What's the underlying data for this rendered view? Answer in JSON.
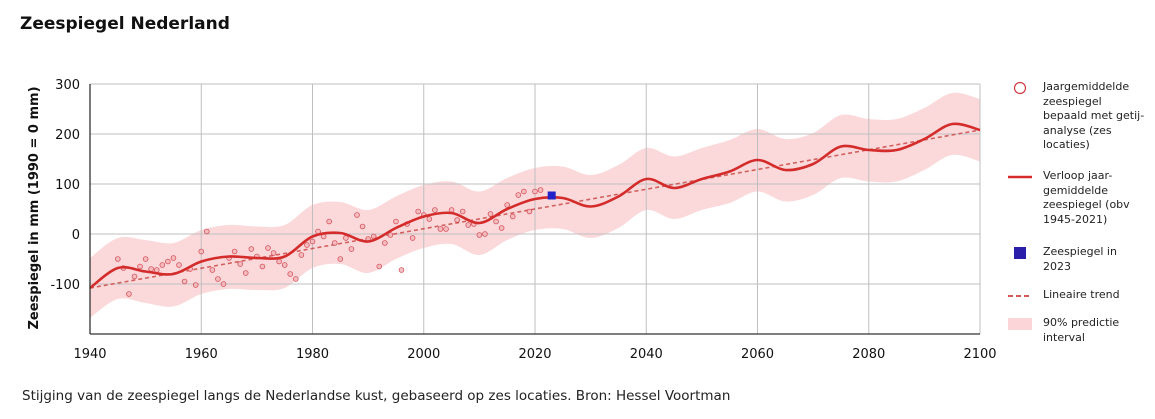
{
  "page": {
    "title": "Zeespiegel Nederland",
    "caption": "Stijging van de zeespiegel langs de Nederlandse kust, gebaseerd op zes locaties. Bron: Hessel Voortman"
  },
  "colors": {
    "observed": "#cf3a44",
    "curve": "#d42b2b",
    "trend": "#c9433f",
    "band": "#fbd5d7",
    "marker2023": "#2222c8",
    "grid": "#bfbfbf",
    "axis": "#333333"
  },
  "chart_data": {
    "type": "line",
    "title": "Zeespiegel Nederland",
    "xlabel": "",
    "ylabel": "Zeespiegel in mm (1990 = 0 mm)",
    "xlim": [
      1940,
      2100
    ],
    "ylim": [
      -200,
      300
    ],
    "xticks": [
      1940,
      1960,
      1980,
      2000,
      2020,
      2040,
      2060,
      2080,
      2100
    ],
    "yticks": [
      -100,
      0,
      100,
      200,
      300
    ],
    "grid": true,
    "legend_position": "right",
    "legend": [
      "Jaargemiddelde zeespiegel bepaald met getij-analyse (zes locaties)",
      "Verloop jaar-gemiddelde zeespiegel (obv 1945-2021)",
      "Zeespiegel in 2023",
      "Lineaire trend",
      "90% predictie interval"
    ],
    "series": [
      {
        "name": "Jaargemiddelde zeespiegel bepaald met getij-analyse (zes locaties)",
        "kind": "scatter",
        "x": [
          1945,
          1946,
          1947,
          1948,
          1949,
          1950,
          1951,
          1952,
          1953,
          1954,
          1955,
          1956,
          1957,
          1958,
          1959,
          1960,
          1961,
          1962,
          1963,
          1964,
          1965,
          1966,
          1967,
          1968,
          1969,
          1970,
          1971,
          1972,
          1973,
          1974,
          1975,
          1976,
          1977,
          1978,
          1979,
          1980,
          1981,
          1982,
          1983,
          1984,
          1985,
          1986,
          1987,
          1988,
          1989,
          1990,
          1991,
          1992,
          1993,
          1994,
          1995,
          1996,
          1997,
          1998,
          1999,
          2000,
          2001,
          2002,
          2003,
          2004,
          2005,
          2006,
          2007,
          2008,
          2009,
          2010,
          2011,
          2012,
          2013,
          2014,
          2015,
          2016,
          2017,
          2018,
          2019,
          2020,
          2021
        ],
        "y": [
          -50,
          -68,
          -120,
          -85,
          -65,
          -50,
          -70,
          -72,
          -62,
          -55,
          -48,
          -62,
          -95,
          -70,
          -102,
          -35,
          5,
          -72,
          -90,
          -100,
          -48,
          -35,
          -60,
          -78,
          -30,
          -45,
          -65,
          -28,
          -38,
          -55,
          -62,
          -80,
          -90,
          -42,
          -22,
          -15,
          5,
          -5,
          25,
          -18,
          -50,
          -8,
          -30,
          38,
          15,
          -10,
          -5,
          -65,
          -18,
          -2,
          25,
          -72,
          20,
          -8,
          45,
          38,
          30,
          48,
          10,
          10,
          48,
          28,
          45,
          18,
          20,
          -2,
          0,
          40,
          25,
          12,
          58,
          35,
          78,
          85,
          45,
          85,
          88
        ]
      },
      {
        "name": "Verloop jaar-gemiddelde zeespiegel (obv 1945-2021)",
        "kind": "line",
        "x": [
          1940,
          1945,
          1950,
          1955,
          1960,
          1965,
          1970,
          1975,
          1980,
          1985,
          1990,
          1995,
          2000,
          2005,
          2010,
          2015,
          2020,
          2025,
          2030,
          2035,
          2040,
          2045,
          2050,
          2055,
          2060,
          2065,
          2070,
          2075,
          2080,
          2085,
          2090,
          2095,
          2100
        ],
        "y": [
          -108,
          -68,
          -75,
          -80,
          -55,
          -45,
          -48,
          -45,
          -5,
          2,
          -15,
          12,
          35,
          42,
          22,
          50,
          70,
          72,
          55,
          75,
          110,
          92,
          110,
          125,
          148,
          128,
          140,
          175,
          168,
          168,
          190,
          220,
          208
        ]
      },
      {
        "name": "Zeespiegel in 2023",
        "kind": "point",
        "x": [
          2023
        ],
        "y": [
          77
        ]
      },
      {
        "name": "Lineaire trend",
        "kind": "line",
        "x": [
          1940,
          2100
        ],
        "y": [
          -108,
          208
        ]
      },
      {
        "name": "90% predictie interval",
        "kind": "band",
        "x": [
          1940,
          1945,
          1950,
          1955,
          1960,
          1965,
          1970,
          1975,
          1980,
          1985,
          1990,
          1995,
          2000,
          2005,
          2010,
          2015,
          2020,
          2025,
          2030,
          2035,
          2040,
          2045,
          2050,
          2055,
          2060,
          2065,
          2070,
          2075,
          2080,
          2085,
          2090,
          2095,
          2100
        ],
        "lower": [
          -168,
          -130,
          -138,
          -145,
          -120,
          -110,
          -112,
          -108,
          -68,
          -60,
          -78,
          -50,
          -28,
          -20,
          -42,
          -12,
          8,
          10,
          -8,
          12,
          48,
          30,
          48,
          62,
          85,
          65,
          78,
          112,
          105,
          105,
          128,
          158,
          145
        ],
        "upper": [
          -48,
          -8,
          -12,
          -18,
          8,
          18,
          15,
          18,
          58,
          64,
          48,
          75,
          98,
          105,
          85,
          112,
          132,
          135,
          118,
          138,
          172,
          155,
          172,
          188,
          210,
          190,
          202,
          238,
          230,
          230,
          252,
          282,
          270
        ]
      }
    ]
  }
}
